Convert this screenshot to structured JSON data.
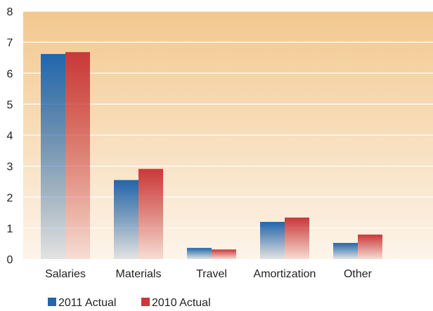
{
  "chart_data": {
    "type": "bar",
    "title": "",
    "xlabel": "",
    "ylabel": "",
    "categories": [
      "Salaries",
      "Materials",
      "Travel",
      "Amortization",
      "Other"
    ],
    "series": [
      {
        "name": "2011 Actual",
        "values": [
          6.62,
          2.55,
          0.36,
          1.2,
          0.52
        ],
        "color": "#2166ac"
      },
      {
        "name": "2010 Actual",
        "values": [
          6.68,
          2.91,
          0.31,
          1.34,
          0.79
        ],
        "color": "#c9383a"
      }
    ],
    "ylim": [
      0,
      8
    ],
    "yticks": [
      "0",
      "1",
      "2",
      "3",
      "4",
      "5",
      "6",
      "7",
      "8"
    ],
    "grid": true,
    "legend_position": "bottom-left",
    "colors": {
      "plot_bg_top": "#f2c88e",
      "plot_bg_bottom": "#fdf4ea",
      "grid": "#ffffff"
    }
  }
}
